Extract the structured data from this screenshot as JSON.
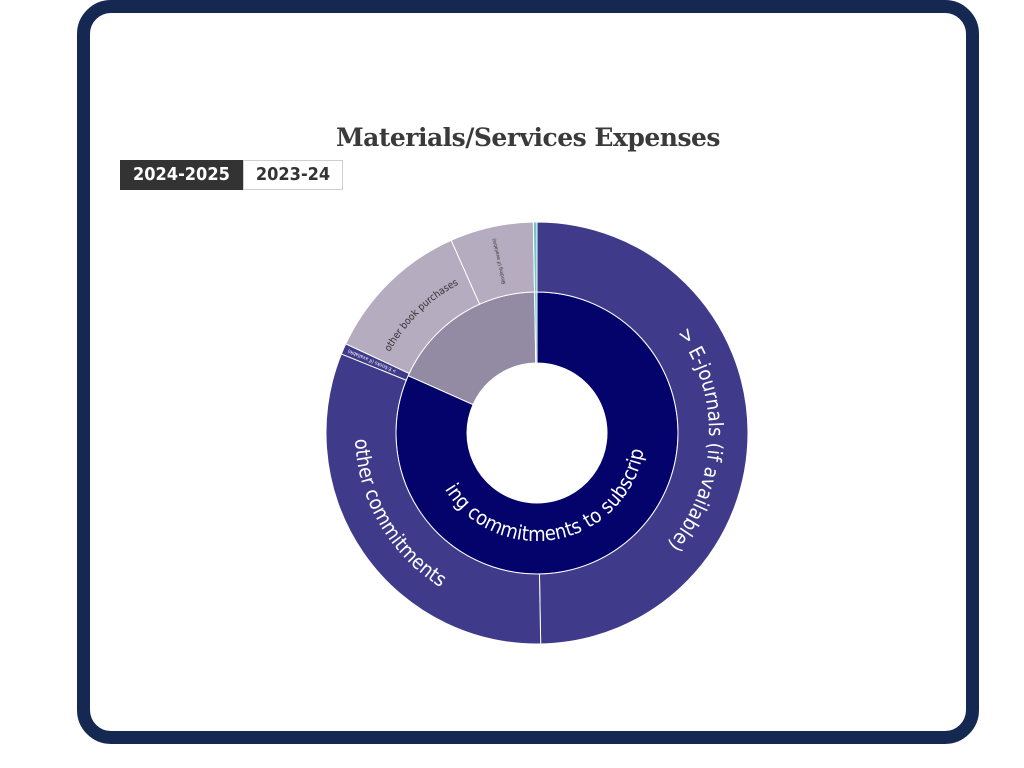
{
  "title": "Materials/Services Expenses",
  "tabs": [
    {
      "label": "2024-2025",
      "active": true
    },
    {
      "label": "2023-24",
      "active": false
    }
  ],
  "colors": {
    "frame": "#142852",
    "inner_subscriptions": "#03036b",
    "inner_other": "#938aa3",
    "outer_purple": "#3f3b8a",
    "outer_grey": "#b5adbf",
    "teal": "#6cc9c9"
  },
  "chart_data": {
    "type": "sunburst",
    "title": "Materials/Services Expenses",
    "rings": {
      "inner": [
        {
          "name": "Ongoing commitments to subscriptions",
          "start_deg": 0,
          "end_deg": 294,
          "color": "#03036b"
        },
        {
          "name": "",
          "start_deg": 294,
          "end_deg": 359,
          "color": "#938aa3"
        },
        {
          "name": "",
          "start_deg": 359,
          "end_deg": 360,
          "color": "#6cc9c9"
        }
      ],
      "outer": [
        {
          "name": "> E-journals (if available)",
          "start_deg": 0,
          "end_deg": 179,
          "color": "#3f3b8a"
        },
        {
          "name": "other commitments",
          "start_deg": 179,
          "end_deg": 292,
          "color": "#3f3b8a"
        },
        {
          "name": "> E-books (if available)",
          "start_deg": 292,
          "end_deg": 295,
          "color": "#3f3b8a"
        },
        {
          "name": "other book purchases",
          "start_deg": 295,
          "end_deg": 336,
          "color": "#b5adbf"
        },
        {
          "name": "Binding (if available)",
          "start_deg": 336,
          "end_deg": 359,
          "color": "#b5adbf"
        },
        {
          "name": "",
          "start_deg": 359,
          "end_deg": 360,
          "color": "#6cc9c9"
        }
      ]
    }
  }
}
